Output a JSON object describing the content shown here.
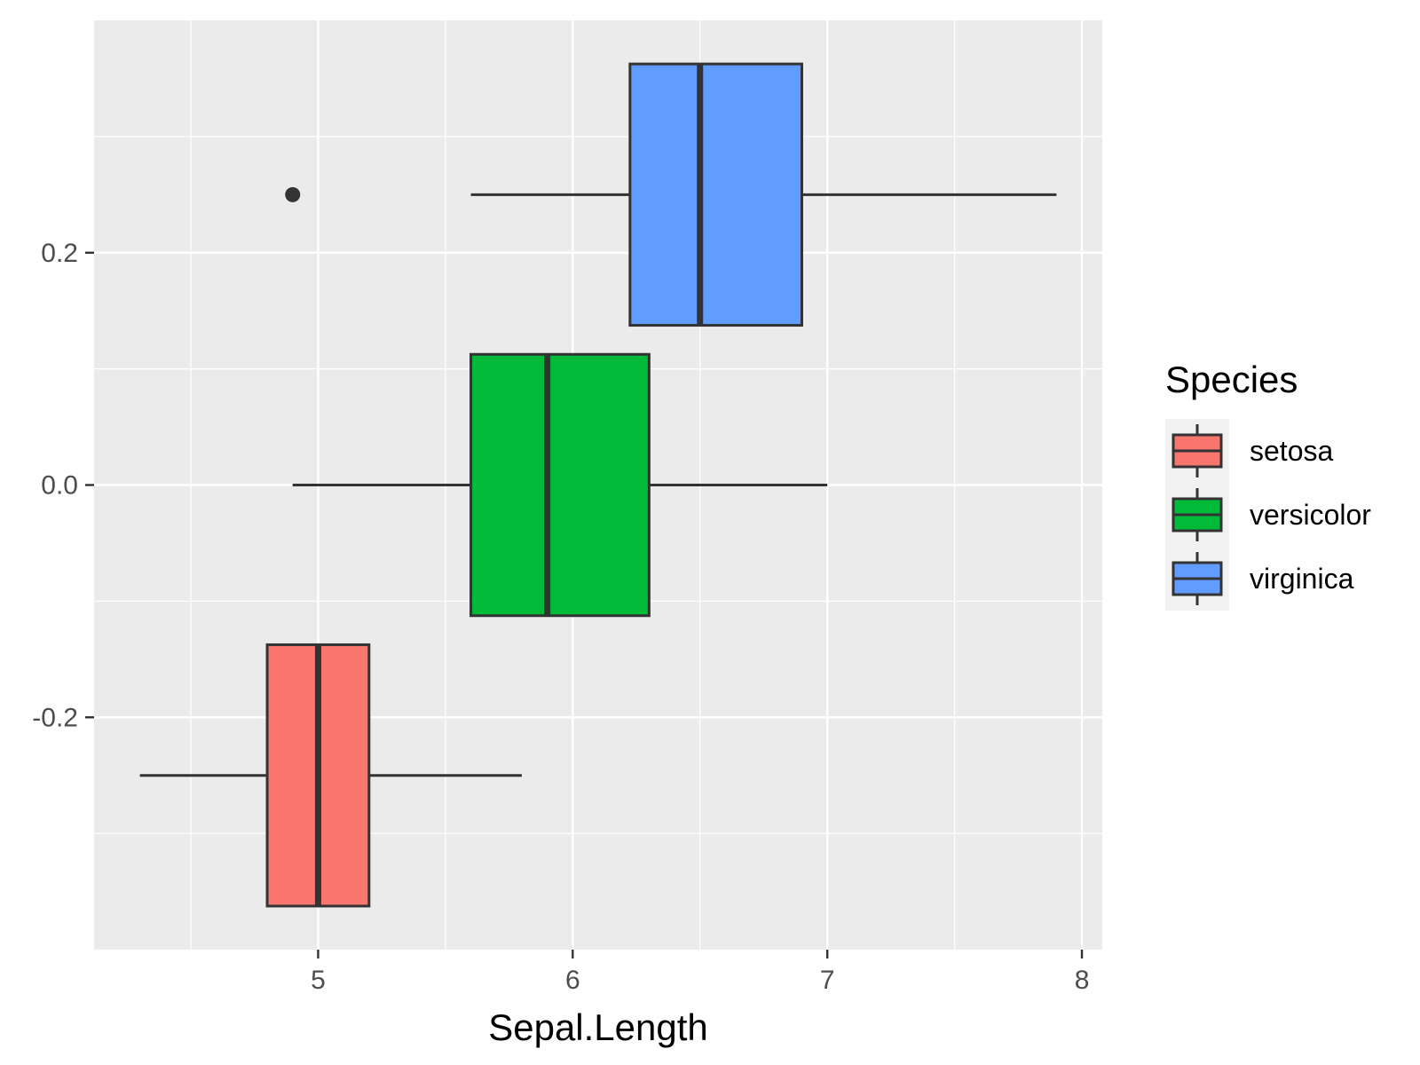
{
  "chart_data": {
    "type": "boxplot",
    "orientation": "horizontal",
    "xlabel": "Sepal.Length",
    "ylabel": "",
    "xlim": [
      4.12,
      8.08
    ],
    "ylim": [
      -0.4,
      0.4
    ],
    "x_ticks": [
      5,
      6,
      7,
      8
    ],
    "x_tick_labels": [
      "5",
      "6",
      "7",
      "8"
    ],
    "y_ticks": [
      -0.2,
      0.0,
      0.2
    ],
    "y_tick_labels": [
      "-0.2",
      "0.0",
      "0.2"
    ],
    "grid": true,
    "legend": {
      "title": "Species",
      "position": "right",
      "entries": [
        "setosa",
        "versicolor",
        "virginica"
      ]
    },
    "series": [
      {
        "name": "setosa",
        "color": "#F8766D",
        "y_center": -0.25,
        "y_low": -0.3625,
        "y_high": -0.1375,
        "whisker_low": 4.3,
        "q1": 4.8,
        "median": 5.0,
        "q3": 5.2,
        "whisker_high": 5.8,
        "outliers": []
      },
      {
        "name": "versicolor",
        "color": "#00BA38",
        "y_center": 0.0,
        "y_low": -0.1125,
        "y_high": 0.1125,
        "whisker_low": 4.9,
        "q1": 5.6,
        "median": 5.9,
        "q3": 6.3,
        "whisker_high": 7.0,
        "outliers": []
      },
      {
        "name": "virginica",
        "color": "#619CFF",
        "y_center": 0.25,
        "y_low": 0.1375,
        "y_high": 0.3625,
        "whisker_low": 5.6,
        "q1": 6.225,
        "median": 6.5,
        "q3": 6.9,
        "whisker_high": 7.9,
        "outliers": [
          4.9
        ]
      }
    ]
  }
}
